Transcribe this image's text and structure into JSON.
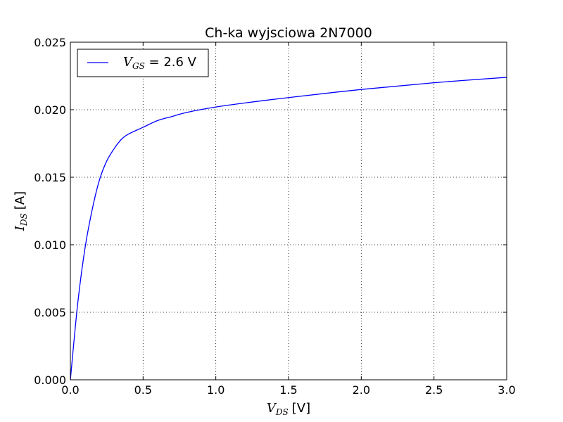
{
  "chart_data": {
    "type": "line",
    "title": "Ch-ka wyjsciowa 2N7000",
    "xlabel": {
      "symbol": "V",
      "subscript": "DS",
      "unit": "[V]"
    },
    "ylabel": {
      "symbol": "I",
      "subscript": "DS",
      "unit": "[A]"
    },
    "xlim": [
      0.0,
      3.0
    ],
    "ylim": [
      0.0,
      0.025
    ],
    "x_ticks": [
      "0.0",
      "0.5",
      "1.0",
      "1.5",
      "2.0",
      "2.5",
      "3.0"
    ],
    "y_ticks": [
      "0.000",
      "0.005",
      "0.010",
      "0.015",
      "0.020",
      "0.025"
    ],
    "grid": true,
    "legend_placement": "top-left",
    "series": [
      {
        "name": {
          "symbol": "V",
          "subscript": "GS",
          "suffix": " = 2.6 V"
        },
        "color": "#0000ff",
        "x": [
          0.0,
          0.05,
          0.1,
          0.15,
          0.2,
          0.25,
          0.3,
          0.35,
          0.4,
          0.5,
          0.6,
          0.7,
          0.8,
          1.0,
          1.2,
          1.5,
          2.0,
          2.5,
          3.0
        ],
        "y": [
          0.0,
          0.0056,
          0.0097,
          0.0126,
          0.0148,
          0.0162,
          0.0171,
          0.0178,
          0.0182,
          0.0187,
          0.0192,
          0.0195,
          0.0198,
          0.0202,
          0.0205,
          0.0209,
          0.0215,
          0.022,
          0.0224
        ]
      }
    ]
  }
}
